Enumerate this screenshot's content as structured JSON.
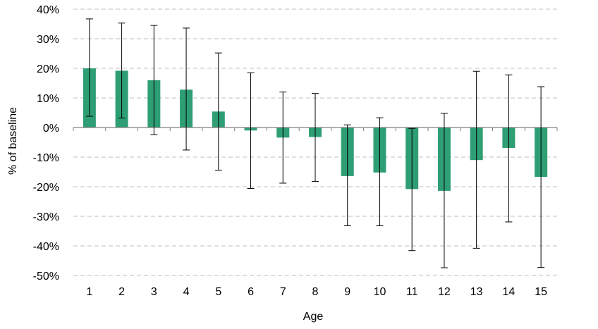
{
  "chart_data": {
    "type": "bar",
    "categories": [
      "1",
      "2",
      "3",
      "4",
      "5",
      "6",
      "7",
      "8",
      "9",
      "10",
      "11",
      "12",
      "13",
      "14",
      "15"
    ],
    "values": [
      20.0,
      19.2,
      16.0,
      12.8,
      5.4,
      -1.0,
      -3.4,
      -3.2,
      -16.4,
      -15.2,
      -20.8,
      -21.4,
      -11.0,
      -6.9,
      -16.7
    ],
    "error_low": [
      3.8,
      3.2,
      -2.4,
      -7.6,
      -14.4,
      -20.6,
      -18.8,
      -18.2,
      -33.2,
      -33.2,
      -41.6,
      -47.4,
      -40.8,
      -31.9,
      -47.3
    ],
    "error_high": [
      36.7,
      35.3,
      34.5,
      33.6,
      25.2,
      18.5,
      12.0,
      11.5,
      0.9,
      3.3,
      -0.3,
      4.8,
      19.0,
      17.8,
      13.8
    ],
    "xlabel": "Age",
    "ylabel": "% of baseline",
    "ylim": [
      -50,
      40
    ],
    "yticks": [
      40,
      30,
      20,
      10,
      0,
      -10,
      -20,
      -30,
      -40,
      -50
    ],
    "ytick_labels": [
      "40%",
      "30%",
      "20%",
      "10%",
      "0%",
      "-10%",
      "-20%",
      "-30%",
      "-40%",
      "-50%"
    ],
    "grid": true,
    "bar_color": "#2e9e74",
    "error_bar_color": "#000000",
    "grid_color": "#bfbfbf"
  }
}
